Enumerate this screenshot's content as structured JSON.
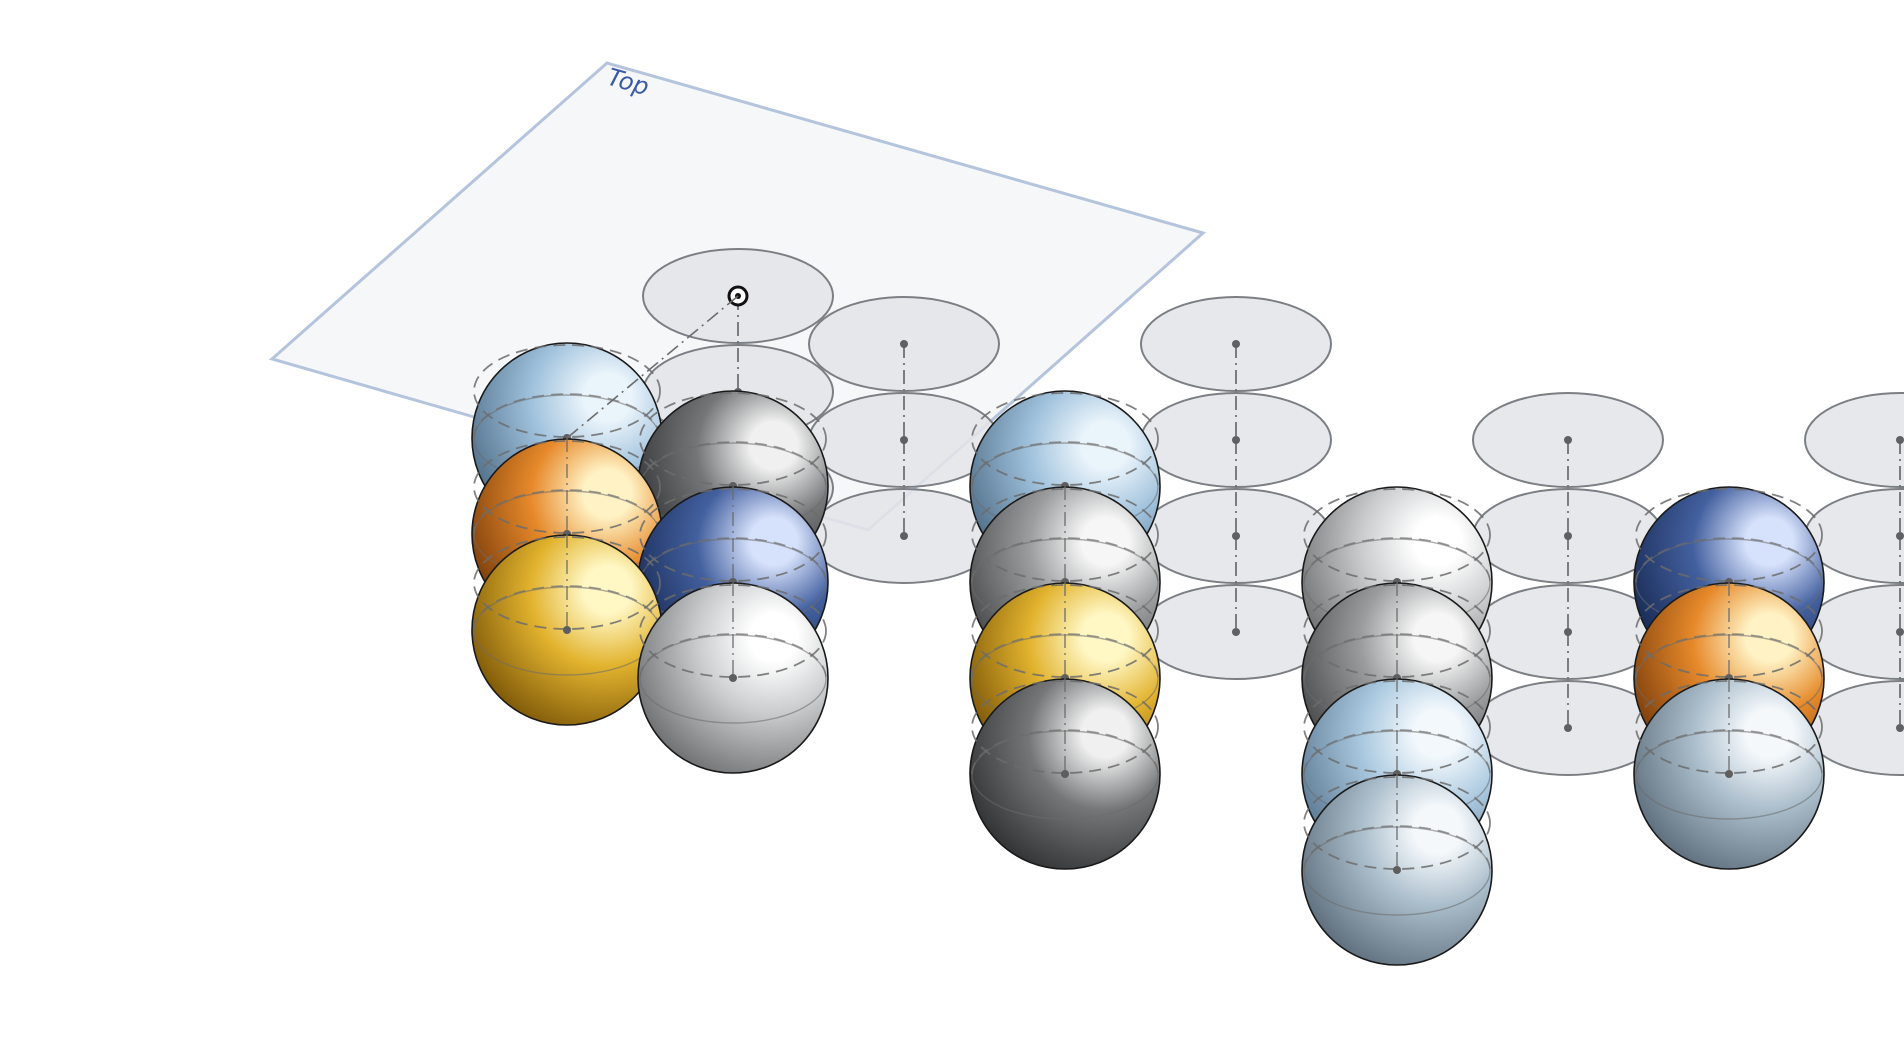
{
  "plane": {
    "label": "Top",
    "fill": "#f5f6f8",
    "stroke": "#b4c4dc",
    "label_color": "#3a5aa8"
  },
  "sketch": {
    "circle_fill": "#e2e5e8",
    "circle_stroke": "#7b7f84",
    "centerline_color": "#6f7377",
    "origin_icon": "sketch-origin-icon",
    "origin_cell": [
      0,
      0
    ],
    "cells": [
      [
        0,
        0
      ],
      [
        1,
        -1
      ],
      [
        2,
        -2
      ],
      [
        1,
        0
      ],
      [
        2,
        -1
      ],
      [
        3,
        -2
      ],
      [
        2,
        1
      ],
      [
        3,
        0
      ],
      [
        4,
        -1
      ],
      [
        5,
        -2
      ],
      [
        4,
        1
      ],
      [
        5,
        0
      ],
      [
        6,
        -1
      ],
      [
        7,
        -2
      ],
      [
        5,
        2
      ],
      [
        6,
        1
      ],
      [
        7,
        0
      ],
      [
        8,
        -1
      ],
      [
        7,
        2
      ],
      [
        8,
        1
      ]
    ]
  },
  "spheres": {
    "outline": "#1a1a1a",
    "guide_color": "#6c6c6c",
    "items": [
      {
        "cell": [
          0,
          0
        ],
        "material": "sky"
      },
      {
        "cell": [
          1,
          -1
        ],
        "material": "orange"
      },
      {
        "cell": [
          2,
          -2
        ],
        "material": "gold"
      },
      {
        "cell": [
          1,
          0
        ],
        "material": "darkgray"
      },
      {
        "cell": [
          2,
          -1
        ],
        "material": "blue"
      },
      {
        "cell": [
          3,
          -2
        ],
        "material": "silver"
      },
      {
        "cell": [
          2,
          1
        ],
        "material": "sky"
      },
      {
        "cell": [
          3,
          0
        ],
        "material": "gray"
      },
      {
        "cell": [
          4,
          -1
        ],
        "material": "gold"
      },
      {
        "cell": [
          5,
          -2
        ],
        "material": "darkgray"
      },
      {
        "cell": [
          4,
          1
        ],
        "material": "silver"
      },
      {
        "cell": [
          5,
          0
        ],
        "material": "gray"
      },
      {
        "cell": [
          6,
          -1
        ],
        "material": "lightblue"
      },
      {
        "cell": [
          7,
          -2
        ],
        "material": "steel"
      },
      {
        "cell": [
          5,
          2
        ],
        "material": "blue"
      },
      {
        "cell": [
          6,
          1
        ],
        "material": "orange"
      },
      {
        "cell": [
          7,
          0
        ],
        "material": "steel"
      }
    ]
  },
  "materials": {
    "sky": {
      "light": "#eaf4fb",
      "mid": "#9fc1dc",
      "dark": "#4e6c86"
    },
    "lightblue": {
      "light": "#f2f8fc",
      "mid": "#a9c8df",
      "dark": "#5a7891"
    },
    "steel": {
      "light": "#f4f8fb",
      "mid": "#aabdcb",
      "dark": "#5b6b79"
    },
    "orange": {
      "light": "#fff2c4",
      "mid": "#e6892a",
      "dark": "#7a3c0b"
    },
    "gold": {
      "light": "#fff7c4",
      "mid": "#e2b32e",
      "dark": "#7b5507"
    },
    "blue": {
      "light": "#d6e1fb",
      "mid": "#43609f",
      "dark": "#172953"
    },
    "darkgray": {
      "light": "#f0f0f0",
      "mid": "#747678",
      "dark": "#2e3032"
    },
    "gray": {
      "light": "#f6f6f6",
      "mid": "#9a9c9e",
      "dark": "#47494b"
    },
    "silver": {
      "light": "#ffffff",
      "mid": "#c9cbcd",
      "dark": "#6a6c6e"
    }
  }
}
